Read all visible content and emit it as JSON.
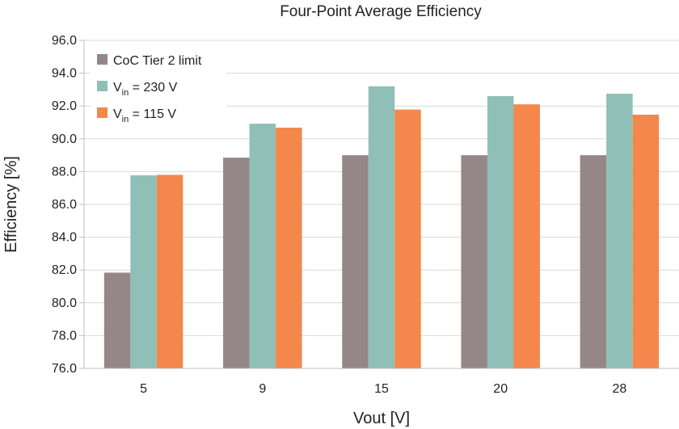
{
  "chart_data": {
    "type": "bar",
    "title": "Four-Point Average Efficiency",
    "xlabel": "Vout [V]",
    "ylabel": "Efficiency [%]",
    "ylim": [
      76.0,
      96.0
    ],
    "yticks": [
      "76.0",
      "78.0",
      "80.0",
      "82.0",
      "84.0",
      "86.0",
      "88.0",
      "90.0",
      "92.0",
      "94.0",
      "96.0"
    ],
    "categories": [
      "5",
      "9",
      "15",
      "20",
      "28"
    ],
    "grid": true,
    "legend_position": "top-left",
    "series": [
      {
        "name": "CoC Tier 2 limit",
        "legend_main": "CoC Tier 2 limit",
        "legend_sub": "",
        "legend_rest": "",
        "color": "#958787",
        "values": [
          81.84,
          88.85,
          89.0,
          89.0,
          89.0
        ]
      },
      {
        "name": "Vin = 230 V",
        "legend_main": "V",
        "legend_sub": "in",
        "legend_rest": " = 230 V",
        "color": "#8fbfb7",
        "values": [
          87.77,
          90.92,
          93.2,
          92.6,
          92.75
        ]
      },
      {
        "name": "Vin = 115 V",
        "legend_main": "V",
        "legend_sub": "in",
        "legend_rest": " = 115 V",
        "color": "#f4874b",
        "values": [
          87.8,
          90.68,
          91.78,
          92.1,
          91.47
        ]
      }
    ]
  }
}
